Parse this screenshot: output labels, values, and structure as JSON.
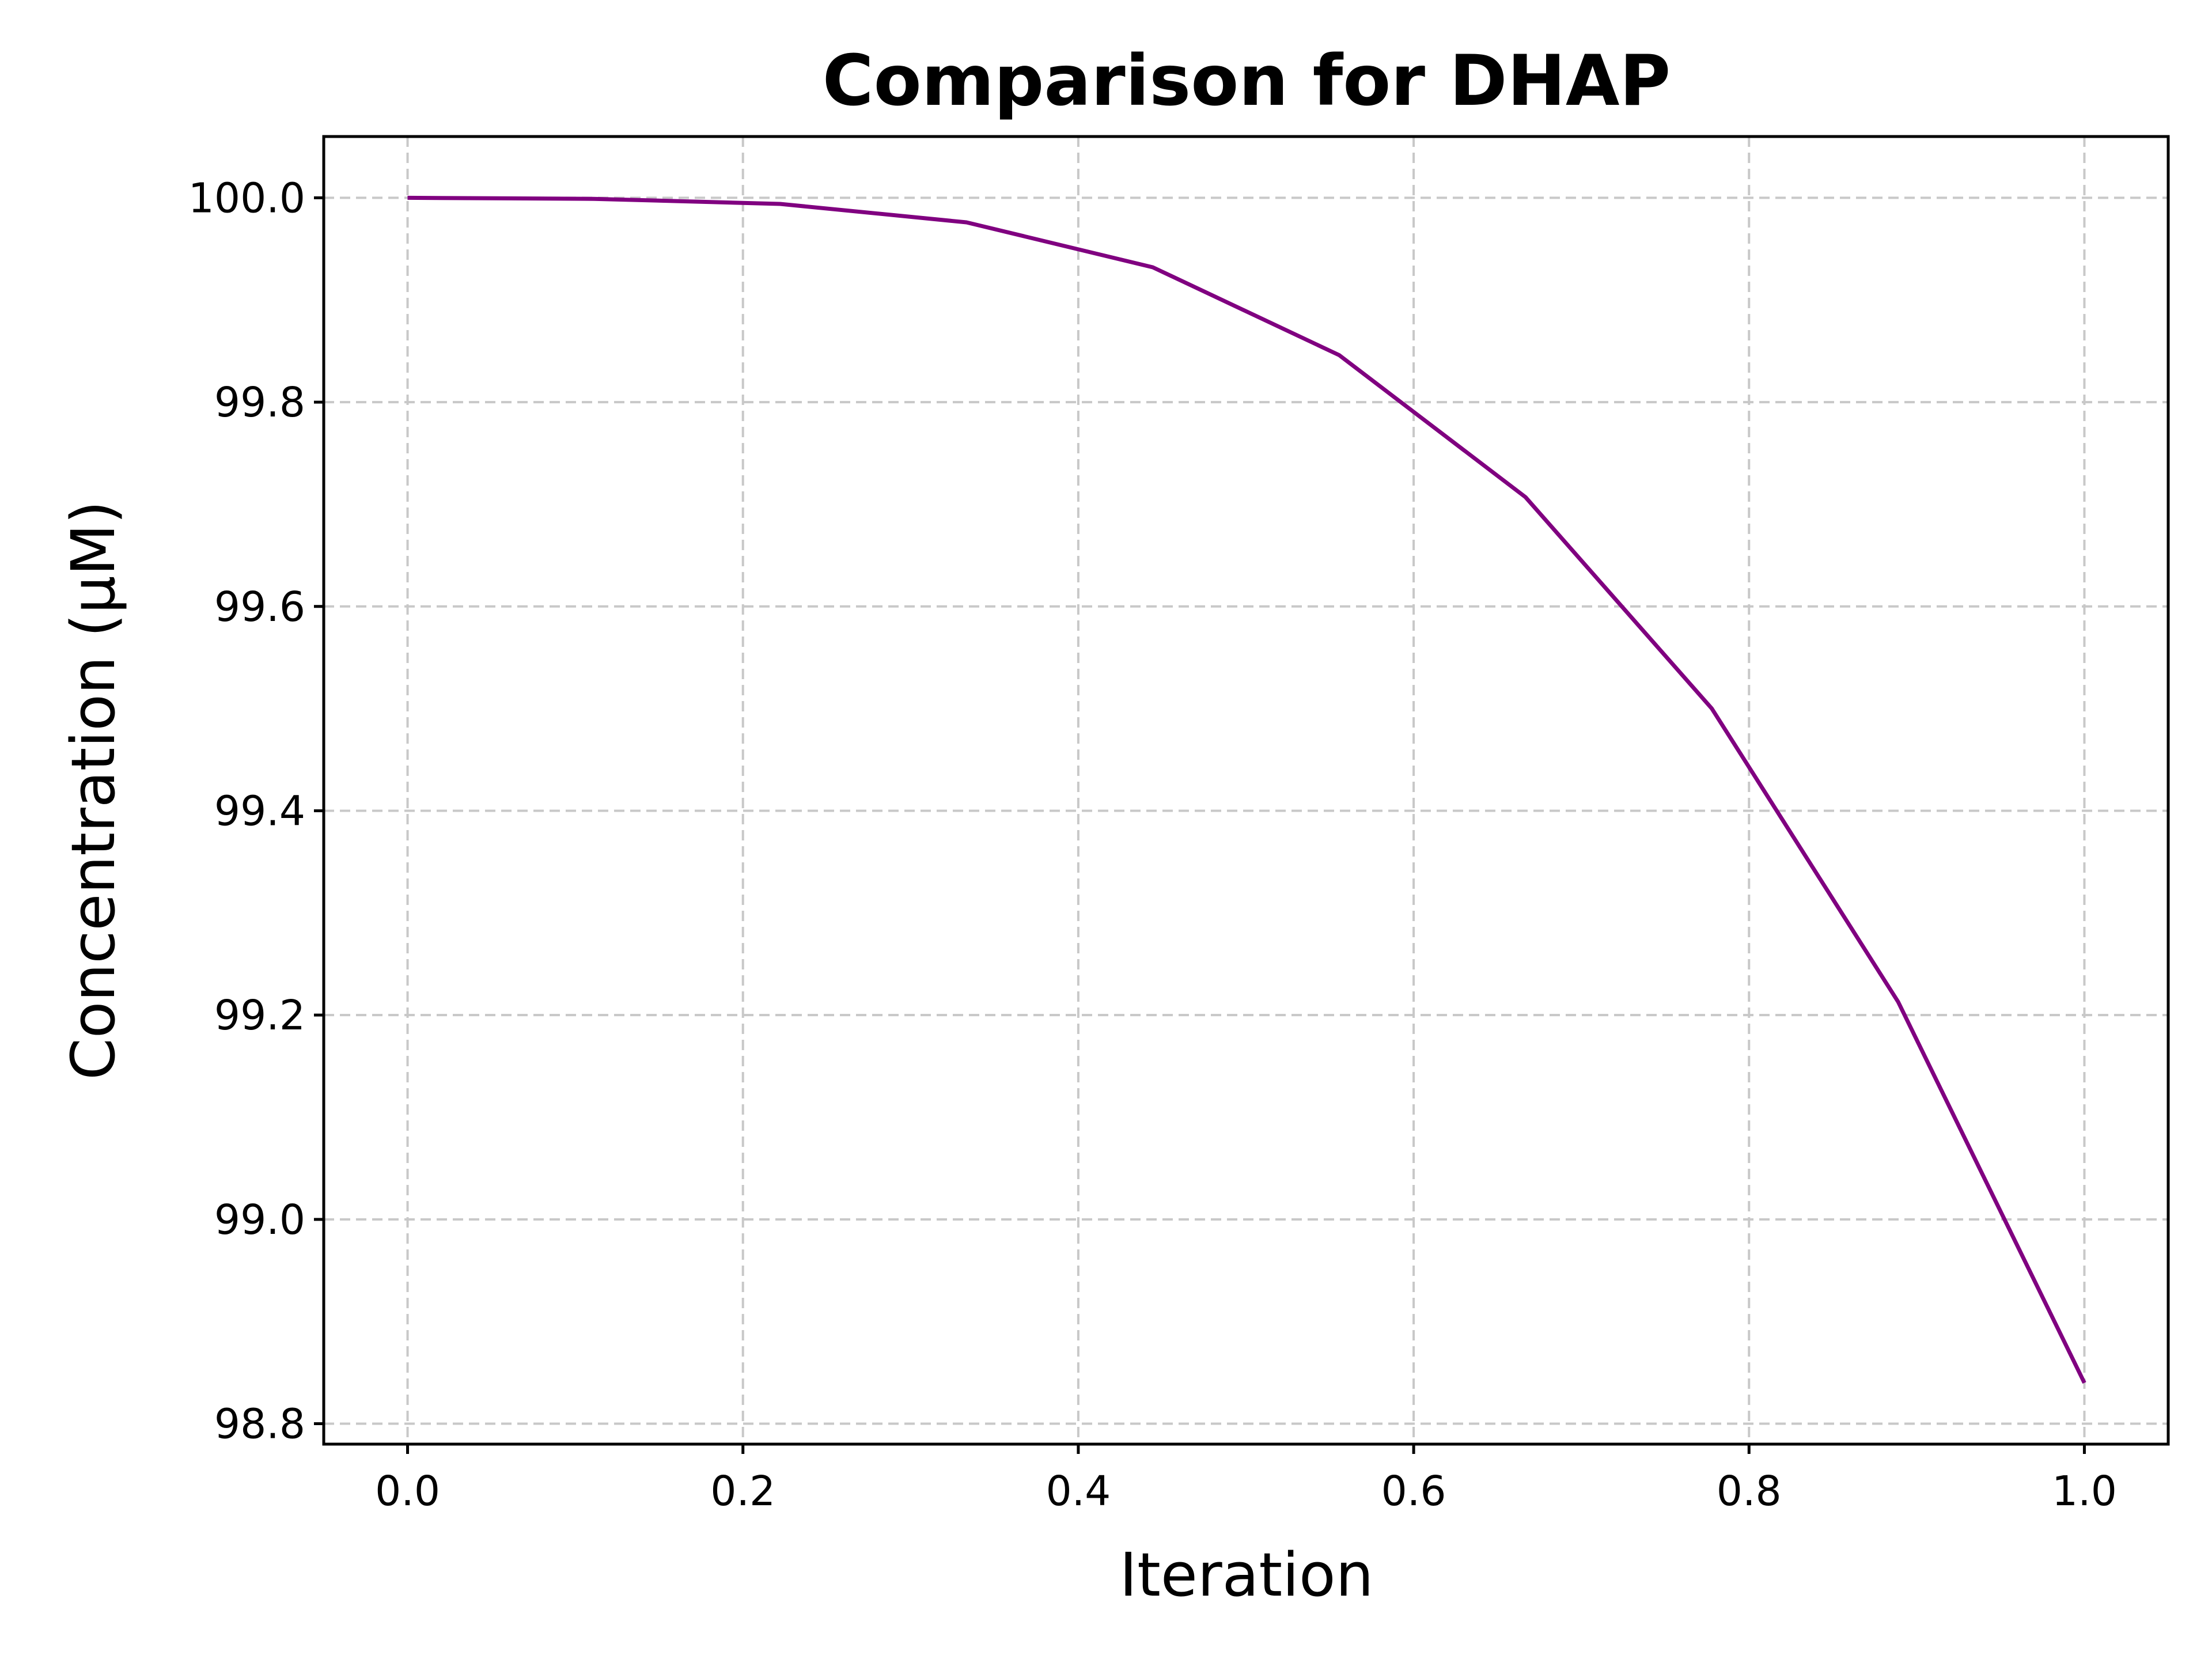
{
  "chart_data": {
    "type": "line",
    "title": "Comparison for DHAP",
    "xlabel": "Iteration",
    "ylabel": "Concentration (μM)",
    "xlim": [
      -0.05,
      1.05
    ],
    "ylim": [
      98.78,
      100.06
    ],
    "xticks": [
      0.0,
      0.2,
      0.4,
      0.6,
      0.8,
      1.0
    ],
    "xtick_labels": [
      "0.0",
      "0.2",
      "0.4",
      "0.6",
      "0.8",
      "1.0"
    ],
    "yticks": [
      98.8,
      99.0,
      99.2,
      99.4,
      99.6,
      99.8,
      100.0
    ],
    "ytick_labels": [
      "98.8",
      "99.0",
      "99.2",
      "99.4",
      "99.6",
      "99.8",
      "100.0"
    ],
    "grid": true,
    "series": [
      {
        "color": "#800080",
        "x": [
          0.0,
          0.1111,
          0.2222,
          0.3333,
          0.4444,
          0.5556,
          0.6667,
          0.7778,
          0.8889,
          1.0
        ],
        "y": [
          100.0,
          99.999,
          99.994,
          99.976,
          99.932,
          99.846,
          99.707,
          99.5,
          99.213,
          98.84
        ]
      }
    ]
  }
}
